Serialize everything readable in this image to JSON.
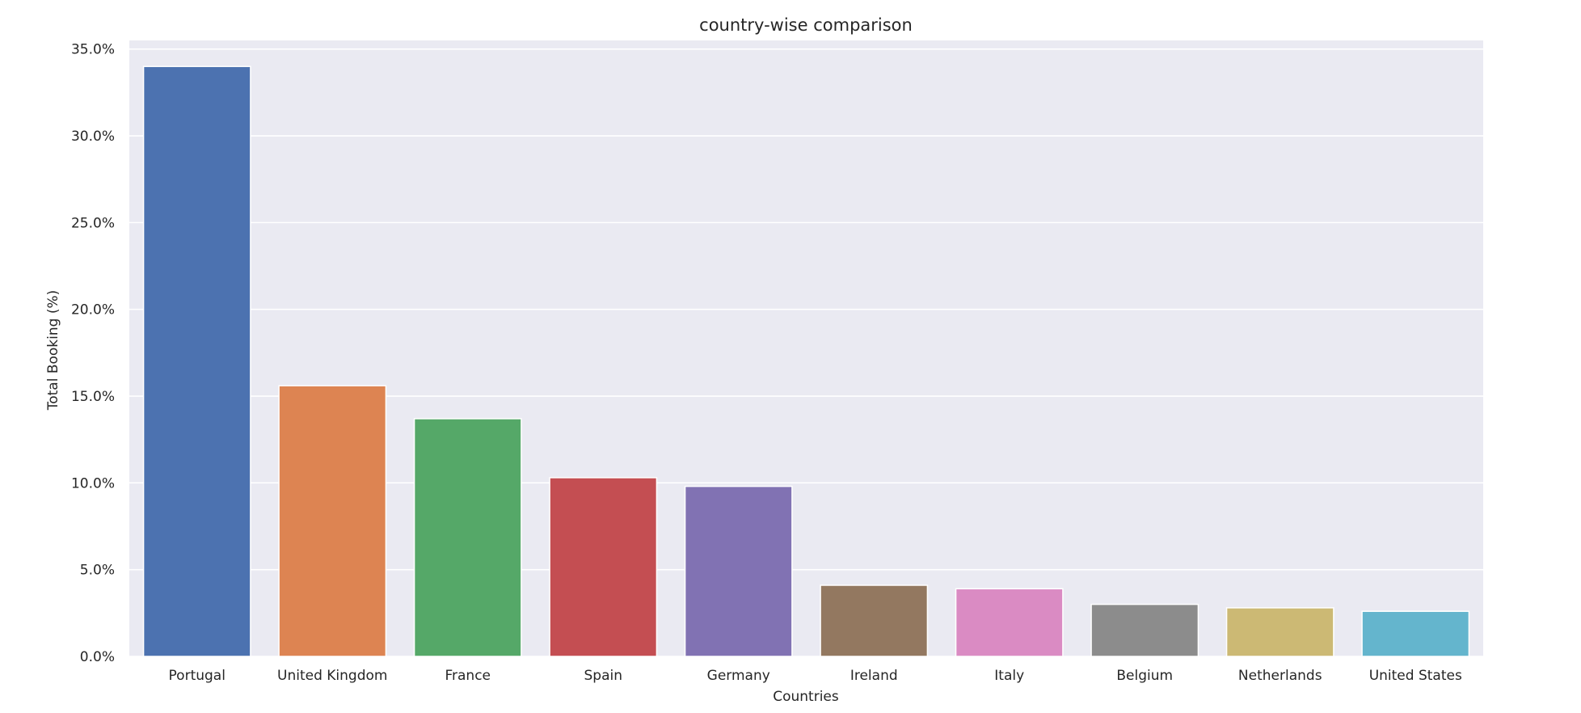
{
  "chart_data": {
    "type": "bar",
    "title": "country-wise comparison",
    "xlabel": "Countries",
    "ylabel": "Total Booking (%)",
    "categories": [
      "Portugal",
      "United Kingdom",
      "France",
      "Spain",
      "Germany",
      "Ireland",
      "Italy",
      "Belgium",
      "Netherlands",
      "United States"
    ],
    "values": [
      34.0,
      15.6,
      13.7,
      10.3,
      9.8,
      4.1,
      3.9,
      3.0,
      2.8,
      2.6
    ],
    "colors": [
      "#4c72b0",
      "#dd8452",
      "#55a868",
      "#c44e52",
      "#8172b3",
      "#937860",
      "#da8bc3",
      "#8c8c8c",
      "#ccb974",
      "#64b5cd"
    ],
    "ylim": [
      0,
      35.5
    ],
    "yticks": [
      0,
      5,
      10,
      15,
      20,
      25,
      30,
      35
    ],
    "ytick_labels": [
      "0.0%",
      "5.0%",
      "10.0%",
      "15.0%",
      "20.0%",
      "25.0%",
      "30.0%",
      "35.0%"
    ],
    "grid": true,
    "background": "#eaeaf2",
    "legend": "none"
  }
}
